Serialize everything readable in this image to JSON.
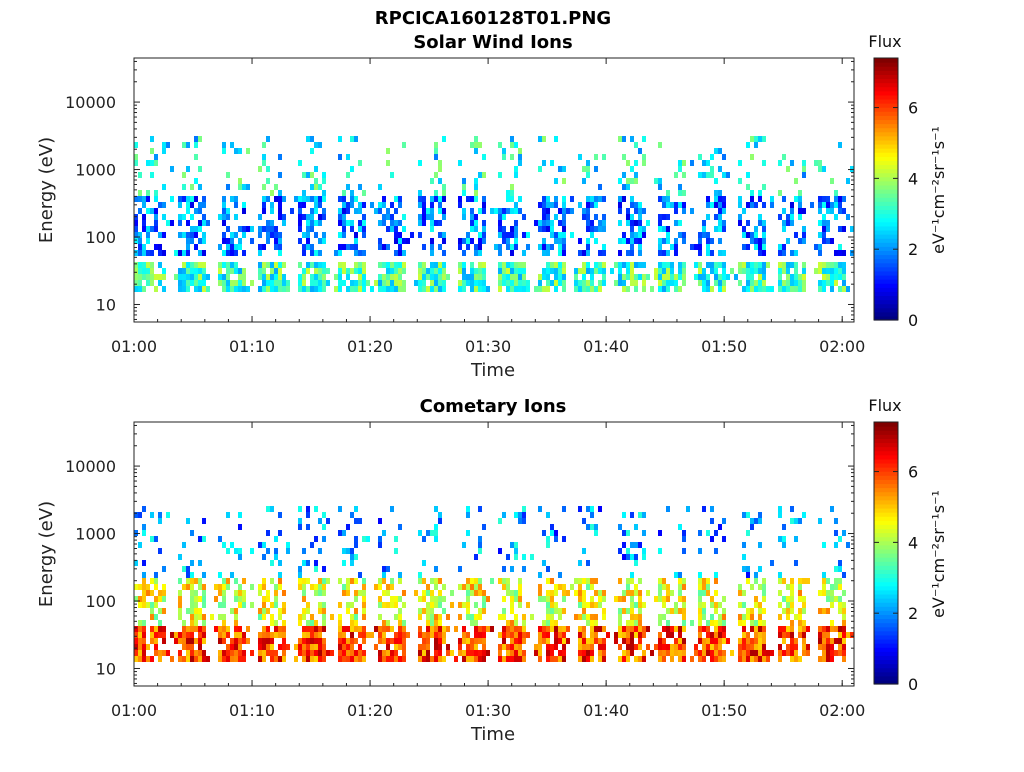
{
  "figure": {
    "title": "RPCICA160128T01.PNG"
  },
  "chart_data": [
    {
      "type": "heatmap",
      "id": "solar",
      "title": "Solar Wind Ions",
      "xlabel": "Time",
      "ylabel": "Energy (eV)",
      "x_range": [
        "01:00",
        "02:01"
      ],
      "x_ticks": [
        "01:00",
        "01:10",
        "01:20",
        "01:30",
        "01:40",
        "01:50",
        "02:00"
      ],
      "y_scale": "log",
      "y_range": [
        5.5,
        45000
      ],
      "y_ticks": [
        {
          "value": 10,
          "label": "10"
        },
        {
          "value": 100,
          "label": "100"
        },
        {
          "value": 1000,
          "label": "1000"
        },
        {
          "value": 10000,
          "label": "10000"
        }
      ],
      "colorbar": {
        "label": "Flux",
        "unit_label": "eV⁻¹cm⁻²sr⁻¹s⁻¹",
        "range": [
          0,
          7.4
        ],
        "ticks": [
          "0",
          "2",
          "4",
          "6"
        ],
        "colormap": "jet"
      },
      "pattern": {
        "period_minutes": 3.4,
        "low_band_eV": [
          16,
          45
        ],
        "mid_band_eV": [
          50,
          400
        ],
        "high_band_eV": [
          400,
          3000
        ],
        "low_band_flux": 3.2,
        "mid_band_flux": 1.8,
        "high_band_flux": 2.8
      }
    },
    {
      "type": "heatmap",
      "id": "cometary",
      "title": "Cometary Ions",
      "xlabel": "Time",
      "ylabel": "Energy (eV)",
      "x_range": [
        "01:00",
        "02:01"
      ],
      "x_ticks": [
        "01:00",
        "01:10",
        "01:20",
        "01:30",
        "01:40",
        "01:50",
        "02:00"
      ],
      "y_scale": "log",
      "y_range": [
        5.5,
        45000
      ],
      "y_ticks": [
        {
          "value": 10,
          "label": "10"
        },
        {
          "value": 100,
          "label": "100"
        },
        {
          "value": 1000,
          "label": "1000"
        },
        {
          "value": 10000,
          "label": "10000"
        }
      ],
      "colorbar": {
        "label": "Flux",
        "unit_label": "eV⁻¹cm⁻²sr⁻¹s⁻¹",
        "range": [
          0,
          7.4
        ],
        "ticks": [
          "0",
          "2",
          "4",
          "6"
        ],
        "colormap": "jet"
      },
      "pattern": {
        "period_minutes": 3.4,
        "low_band_eV": [
          12,
          45
        ],
        "mid_band_eV": [
          45,
          200
        ],
        "high_band_eV": [
          200,
          2500
        ],
        "low_band_flux": 6.0,
        "mid_band_flux": 4.5,
        "high_band_flux": 2.0
      }
    }
  ]
}
